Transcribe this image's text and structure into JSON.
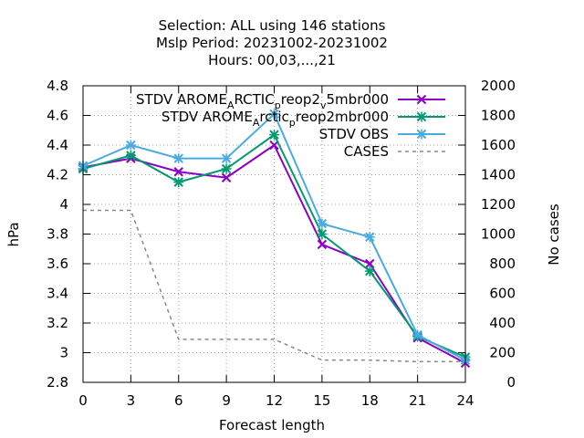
{
  "chart_data": {
    "type": "line",
    "title_lines": [
      "Selection: ALL using   146 stations",
      "Mslp   Period: 20231002-20231002",
      "Hours:  00,03,...,21"
    ],
    "xlabel": "Forecast length",
    "ylabel": "hPa",
    "y2label": "No cases",
    "x": [
      0,
      3,
      6,
      9,
      12,
      15,
      18,
      21,
      24
    ],
    "xlim": [
      0,
      24
    ],
    "ylim": [
      2.8,
      4.8
    ],
    "y2lim": [
      0,
      2000
    ],
    "x_ticks": [
      "0",
      "3",
      "6",
      "9",
      "12",
      "15",
      "18",
      "21",
      "24"
    ],
    "y_ticks": [
      "2.8",
      "3",
      "3.2",
      "3.4",
      "3.6",
      "3.8",
      "4",
      "4.2",
      "4.4",
      "4.6",
      "4.8"
    ],
    "y2_ticks": [
      "0",
      "200",
      "400",
      "600",
      "800",
      "1000",
      "1200",
      "1400",
      "1600",
      "1800",
      "2000"
    ],
    "grid": true,
    "legend_position": "top-right",
    "series": [
      {
        "name": "STDV AROME_ARCTIC_preop2_v5mbr000",
        "legend_label": {
          "a": "STDV AROME",
          "b": "A",
          "c": "RCTIC",
          "d": "p",
          "e": "reop2",
          "f": "v",
          "g": "5mbr000"
        },
        "color": "#8b00c8",
        "marker": "x",
        "axis": "y",
        "values": [
          4.25,
          4.31,
          4.22,
          4.18,
          4.4,
          3.73,
          3.6,
          3.1,
          2.93
        ]
      },
      {
        "name": "STDV AROME_Arctic_preop2mbr000",
        "legend_label": {
          "a": "STDV AROME",
          "b": "A",
          "c": "rctic",
          "d": "p",
          "e": "reop2mbr000"
        },
        "color": "#009a70",
        "marker": "star",
        "axis": "y",
        "values": [
          4.24,
          4.33,
          4.15,
          4.24,
          4.47,
          3.8,
          3.55,
          3.11,
          2.97
        ]
      },
      {
        "name": "STDV OBS",
        "color": "#4aabe0",
        "marker": "star",
        "axis": "y",
        "values": [
          4.26,
          4.4,
          4.31,
          4.31,
          4.61,
          3.87,
          3.78,
          3.12,
          2.95
        ]
      },
      {
        "name": "CASES",
        "color": "#888888",
        "marker": "none",
        "dash": true,
        "axis": "y2",
        "values": [
          1160,
          1160,
          290,
          290,
          290,
          150,
          150,
          140,
          140
        ]
      }
    ]
  }
}
